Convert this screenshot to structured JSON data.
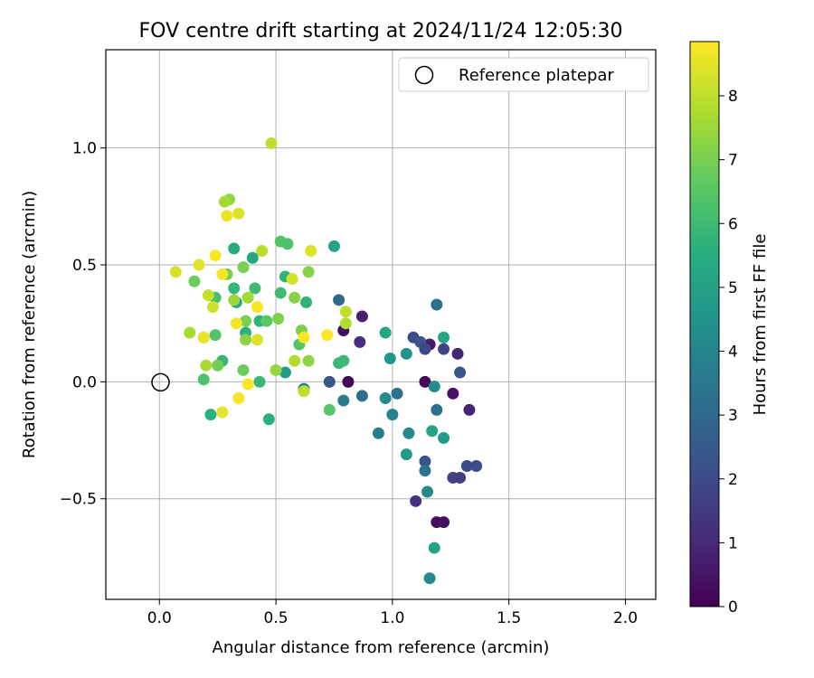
{
  "chart_data": {
    "type": "scatter",
    "title": "FOV centre drift starting at 2024/11/24 12:05:30",
    "xlabel": "Angular distance from reference (arcmin)",
    "ylabel": "Rotation from reference (arcmin)",
    "xlim": [
      -0.23,
      2.13
    ],
    "ylim": [
      -0.93,
      1.42
    ],
    "xticks": [
      0.0,
      0.5,
      1.0,
      1.5,
      2.0
    ],
    "xtick_labels": [
      "0.0",
      "0.5",
      "1.0",
      "1.5",
      "2.0"
    ],
    "yticks": [
      -0.5,
      0.0,
      0.5,
      1.0
    ],
    "ytick_labels": [
      "−0.5",
      "0.0",
      "0.5",
      "1.0"
    ],
    "grid": true,
    "colormap": "viridis",
    "colorbar": {
      "label": "Hours from first FF file",
      "range": [
        0,
        8.85
      ],
      "ticks": [
        0,
        1,
        2,
        3,
        4,
        5,
        6,
        7,
        8
      ],
      "tick_labels": [
        "0",
        "1",
        "2",
        "3",
        "4",
        "5",
        "6",
        "7",
        "8"
      ]
    },
    "legend": {
      "position": "top-right",
      "entries": [
        "Reference platepar"
      ]
    },
    "reference_point": {
      "x": 0.0,
      "y": 0.0
    },
    "points": [
      {
        "x": 0.81,
        "y": 0.0,
        "h": 0.1
      },
      {
        "x": 0.79,
        "y": 0.22,
        "h": 0.3
      },
      {
        "x": 0.87,
        "y": 0.28,
        "h": 0.8
      },
      {
        "x": 0.86,
        "y": 0.17,
        "h": 1.1
      },
      {
        "x": 1.14,
        "y": 0.0,
        "h": 0.2
      },
      {
        "x": 1.16,
        "y": 0.16,
        "h": 0.6
      },
      {
        "x": 1.28,
        "y": 0.12,
        "h": 0.9
      },
      {
        "x": 1.26,
        "y": -0.05,
        "h": 0.4
      },
      {
        "x": 1.33,
        "y": -0.12,
        "h": 0.9
      },
      {
        "x": 1.19,
        "y": -0.6,
        "h": 0.3
      },
      {
        "x": 1.22,
        "y": -0.6,
        "h": 0.4
      },
      {
        "x": 1.1,
        "y": -0.51,
        "h": 1.3
      },
      {
        "x": 1.26,
        "y": -0.41,
        "h": 1.7
      },
      {
        "x": 1.29,
        "y": -0.41,
        "h": 1.6
      },
      {
        "x": 1.32,
        "y": -0.36,
        "h": 2.0
      },
      {
        "x": 1.36,
        "y": -0.36,
        "h": 2.1
      },
      {
        "x": 1.14,
        "y": -0.34,
        "h": 2.3
      },
      {
        "x": 1.09,
        "y": 0.19,
        "h": 2.0
      },
      {
        "x": 1.12,
        "y": 0.17,
        "h": 2.2
      },
      {
        "x": 1.14,
        "y": 0.14,
        "h": 1.9
      },
      {
        "x": 1.22,
        "y": 0.14,
        "h": 1.8
      },
      {
        "x": 1.29,
        "y": 0.04,
        "h": 2.3
      },
      {
        "x": 0.73,
        "y": 0.0,
        "h": 2.3
      },
      {
        "x": 0.77,
        "y": 0.35,
        "h": 3.0
      },
      {
        "x": 0.87,
        "y": -0.06,
        "h": 3.2
      },
      {
        "x": 0.79,
        "y": -0.08,
        "h": 3.7
      },
      {
        "x": 1.02,
        "y": -0.05,
        "h": 3.2
      },
      {
        "x": 1.19,
        "y": 0.33,
        "h": 3.3
      },
      {
        "x": 1.19,
        "y": -0.12,
        "h": 3.3
      },
      {
        "x": 1.14,
        "y": -0.38,
        "h": 3.3
      },
      {
        "x": 0.94,
        "y": -0.22,
        "h": 3.7
      },
      {
        "x": 1.0,
        "y": -0.14,
        "h": 3.9
      },
      {
        "x": 1.07,
        "y": -0.22,
        "h": 4.1
      },
      {
        "x": 1.15,
        "y": -0.47,
        "h": 4.2
      },
      {
        "x": 1.16,
        "y": -0.84,
        "h": 4.2
      },
      {
        "x": 1.18,
        "y": -0.02,
        "h": 4.3
      },
      {
        "x": 0.97,
        "y": -0.07,
        "h": 4.3
      },
      {
        "x": 0.62,
        "y": -0.03,
        "h": 3.9
      },
      {
        "x": 0.99,
        "y": 0.1,
        "h": 4.6
      },
      {
        "x": 1.06,
        "y": 0.12,
        "h": 4.5
      },
      {
        "x": 1.06,
        "y": -0.31,
        "h": 4.8
      },
      {
        "x": 1.22,
        "y": -0.24,
        "h": 4.8
      },
      {
        "x": 1.17,
        "y": -0.21,
        "h": 5.1
      },
      {
        "x": 1.18,
        "y": -0.71,
        "h": 5.1
      },
      {
        "x": 1.22,
        "y": 0.19,
        "h": 5.2
      },
      {
        "x": 0.97,
        "y": 0.21,
        "h": 5.2
      },
      {
        "x": 0.75,
        "y": 0.58,
        "h": 5.1
      },
      {
        "x": 0.54,
        "y": 0.04,
        "h": 4.9
      },
      {
        "x": 0.32,
        "y": 0.57,
        "h": 5.4
      },
      {
        "x": 0.4,
        "y": 0.53,
        "h": 5.2
      },
      {
        "x": 0.47,
        "y": -0.16,
        "h": 5.6
      },
      {
        "x": 0.22,
        "y": -0.14,
        "h": 5.6
      },
      {
        "x": 0.33,
        "y": 0.34,
        "h": 5.3
      },
      {
        "x": 0.37,
        "y": 0.21,
        "h": 5.6
      },
      {
        "x": 0.43,
        "y": 0.26,
        "h": 5.7
      },
      {
        "x": 0.54,
        "y": 0.45,
        "h": 5.7
      },
      {
        "x": 0.63,
        "y": 0.34,
        "h": 5.7
      },
      {
        "x": 0.77,
        "y": 0.08,
        "h": 5.9
      },
      {
        "x": 0.79,
        "y": 0.09,
        "h": 6.0
      },
      {
        "x": 0.43,
        "y": 0.0,
        "h": 5.9
      },
      {
        "x": 0.27,
        "y": 0.09,
        "h": 5.9
      },
      {
        "x": 0.32,
        "y": 0.4,
        "h": 5.8
      },
      {
        "x": 0.41,
        "y": 0.4,
        "h": 6.0
      },
      {
        "x": 0.52,
        "y": 0.38,
        "h": 6.0
      },
      {
        "x": 0.24,
        "y": 0.36,
        "h": 6.2
      },
      {
        "x": 0.19,
        "y": 0.01,
        "h": 6.3
      },
      {
        "x": 0.19,
        "y": 0.19,
        "h": 6.3
      },
      {
        "x": 0.24,
        "y": 0.2,
        "h": 6.4
      },
      {
        "x": 0.52,
        "y": 0.6,
        "h": 6.4
      },
      {
        "x": 0.55,
        "y": 0.59,
        "h": 6.3
      },
      {
        "x": 0.73,
        "y": -0.12,
        "h": 6.5
      },
      {
        "x": 0.6,
        "y": 0.16,
        "h": 6.5
      },
      {
        "x": 0.46,
        "y": 0.26,
        "h": 6.6
      },
      {
        "x": 0.36,
        "y": 0.05,
        "h": 6.8
      },
      {
        "x": 0.25,
        "y": 0.07,
        "h": 6.9
      },
      {
        "x": 0.15,
        "y": 0.43,
        "h": 6.8
      },
      {
        "x": 0.29,
        "y": 0.46,
        "h": 6.9
      },
      {
        "x": 0.36,
        "y": 0.49,
        "h": 7.0
      },
      {
        "x": 0.37,
        "y": 0.26,
        "h": 7.0
      },
      {
        "x": 0.51,
        "y": 0.27,
        "h": 7.1
      },
      {
        "x": 0.61,
        "y": 0.22,
        "h": 7.1
      },
      {
        "x": 0.64,
        "y": 0.47,
        "h": 7.2
      },
      {
        "x": 0.58,
        "y": 0.36,
        "h": 7.2
      },
      {
        "x": 0.64,
        "y": 0.09,
        "h": 7.3
      },
      {
        "x": 0.5,
        "y": 0.05,
        "h": 7.4
      },
      {
        "x": 0.37,
        "y": 0.18,
        "h": 7.3
      },
      {
        "x": 0.3,
        "y": 0.78,
        "h": 7.4
      },
      {
        "x": 0.32,
        "y": 0.35,
        "h": 7.5
      },
      {
        "x": 0.38,
        "y": 0.36,
        "h": 7.6
      },
      {
        "x": 0.13,
        "y": 0.21,
        "h": 7.7
      },
      {
        "x": 0.2,
        "y": 0.07,
        "h": 7.7
      },
      {
        "x": 0.28,
        "y": 0.77,
        "h": 7.6
      },
      {
        "x": 0.8,
        "y": 0.25,
        "h": 7.8
      },
      {
        "x": 0.8,
        "y": 0.3,
        "h": 8.0
      },
      {
        "x": 0.62,
        "y": -0.04,
        "h": 8.0
      },
      {
        "x": 0.58,
        "y": 0.09,
        "h": 7.8
      },
      {
        "x": 0.44,
        "y": 0.56,
        "h": 7.9
      },
      {
        "x": 0.48,
        "y": 1.02,
        "h": 8.0
      },
      {
        "x": 0.21,
        "y": 0.37,
        "h": 8.1
      },
      {
        "x": 0.23,
        "y": 0.32,
        "h": 8.2
      },
      {
        "x": 0.57,
        "y": 0.44,
        "h": 8.3
      },
      {
        "x": 0.65,
        "y": 0.56,
        "h": 8.4
      },
      {
        "x": 0.34,
        "y": 0.72,
        "h": 8.4
      },
      {
        "x": 0.29,
        "y": 0.71,
        "h": 8.6
      },
      {
        "x": 0.07,
        "y": 0.47,
        "h": 8.3
      },
      {
        "x": 0.17,
        "y": 0.5,
        "h": 8.5
      },
      {
        "x": 0.27,
        "y": 0.46,
        "h": 8.7
      },
      {
        "x": 0.24,
        "y": 0.54,
        "h": 8.8
      },
      {
        "x": 0.33,
        "y": 0.25,
        "h": 8.7
      },
      {
        "x": 0.42,
        "y": 0.18,
        "h": 8.4
      },
      {
        "x": 0.42,
        "y": 0.32,
        "h": 8.8
      },
      {
        "x": 0.34,
        "y": -0.07,
        "h": 8.7
      },
      {
        "x": 0.38,
        "y": -0.01,
        "h": 8.8
      },
      {
        "x": 0.27,
        "y": -0.13,
        "h": 8.5
      },
      {
        "x": 0.72,
        "y": 0.2,
        "h": 8.8
      },
      {
        "x": 0.62,
        "y": 0.19,
        "h": 8.8
      },
      {
        "x": 0.19,
        "y": 0.19,
        "h": 8.6
      }
    ]
  }
}
